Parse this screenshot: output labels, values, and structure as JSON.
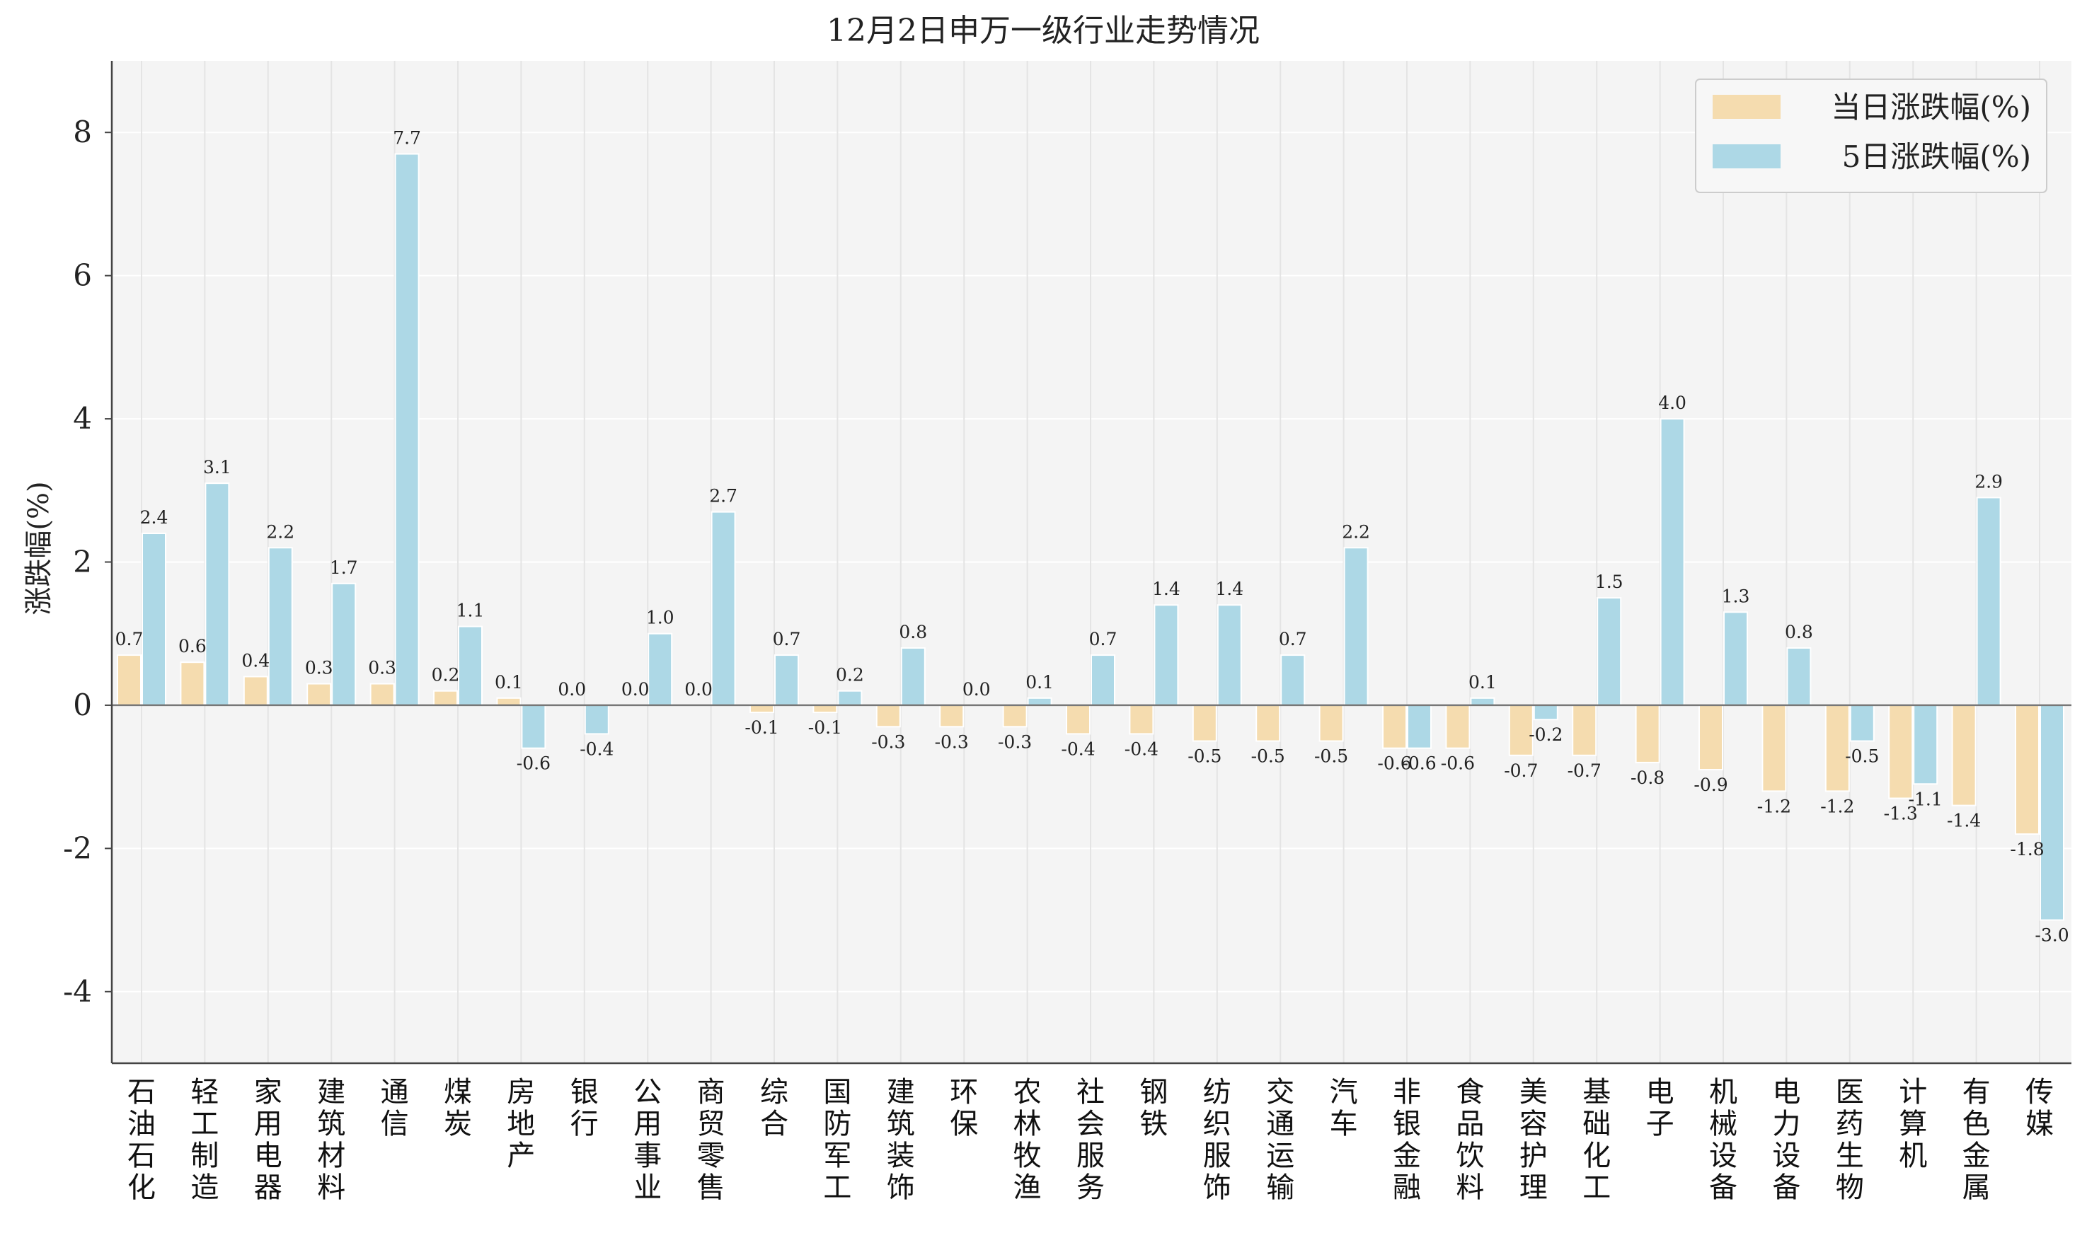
{
  "chart_data": {
    "type": "bar",
    "title": "12月2日申万一级行业走势情况",
    "xlabel": "",
    "ylabel": "涨跌幅(%)",
    "ylim": [
      -5,
      9
    ],
    "yticks": [
      -4,
      -2,
      0,
      2,
      4,
      6,
      8
    ],
    "grid": true,
    "legend_position": "top-right",
    "categories": [
      "石油石化",
      "轻工制造",
      "家用电器",
      "建筑材料",
      "通信",
      "煤炭",
      "房地产",
      "银行",
      "公用事业",
      "商贸零售",
      "综合",
      "国防军工",
      "建筑装饰",
      "环保",
      "农林牧渔",
      "社会服务",
      "钢铁",
      "纺织服饰",
      "交通运输",
      "汽车",
      "非银金融",
      "食品饮料",
      "美容护理",
      "基础化工",
      "电子",
      "机械设备",
      "电力设备",
      "医药生物",
      "计算机",
      "有色金属",
      "传媒"
    ],
    "series": [
      {
        "name": "当日涨跌幅(%)",
        "color": "#f5dcaf",
        "values": [
          0.7,
          0.6,
          0.4,
          0.3,
          0.3,
          0.2,
          0.1,
          0.0,
          0.0,
          0.0,
          -0.1,
          -0.1,
          -0.3,
          -0.3,
          -0.3,
          -0.4,
          -0.4,
          -0.5,
          -0.5,
          -0.5,
          -0.6,
          -0.6,
          -0.7,
          -0.7,
          -0.8,
          -0.9,
          -1.2,
          -1.2,
          -1.3,
          -1.4,
          -1.8
        ]
      },
      {
        "name": "5日涨跌幅(%)",
        "color": "#add8e6",
        "values": [
          2.4,
          3.1,
          2.2,
          1.7,
          7.7,
          1.1,
          -0.6,
          -0.4,
          1.0,
          2.7,
          0.7,
          0.2,
          0.8,
          0.0,
          0.1,
          0.7,
          1.4,
          1.4,
          0.7,
          2.2,
          -0.6,
          0.1,
          -0.2,
          1.5,
          4.0,
          1.3,
          0.8,
          -0.5,
          -1.1,
          2.9,
          -3.0
        ]
      }
    ]
  }
}
